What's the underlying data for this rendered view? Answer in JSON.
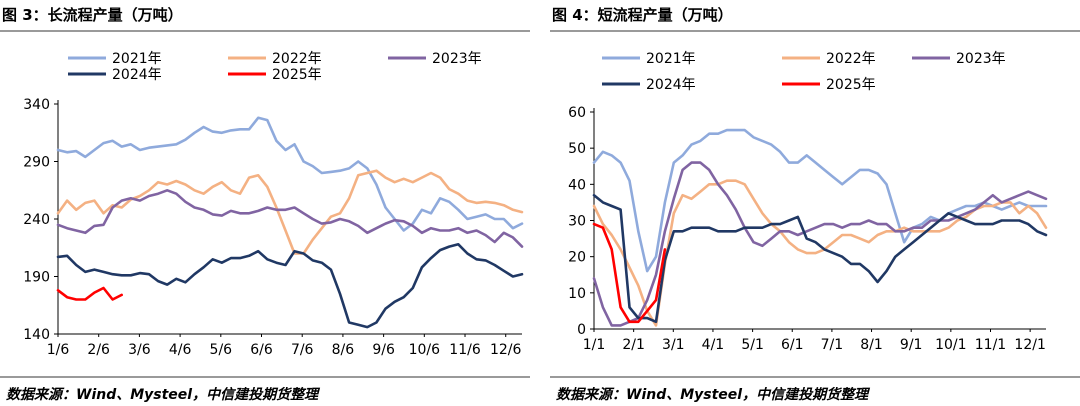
{
  "left_panel": {
    "title": "图 3：长流程产量（万吨）",
    "source": "数据来源：Wind、Mysteel，中信建投期货整理"
  },
  "right_panel": {
    "title": "图 4：短流程产量（万吨）",
    "source": "数据来源：Wind、Mysteel，中信建投期货整理"
  },
  "chart_data": [
    {
      "type": "line",
      "title": "长流程产量（万吨）",
      "xlabel": "",
      "ylabel": "",
      "x_tick_labels": [
        "1/6",
        "2/6",
        "3/6",
        "4/6",
        "5/6",
        "6/6",
        "7/6",
        "8/6",
        "9/6",
        "10/6",
        "11/6",
        "12/6"
      ],
      "y_ticks": [
        140,
        190,
        240,
        290,
        340
      ],
      "ylim": [
        140,
        340
      ],
      "week_count": 52,
      "grid": false,
      "legend_position": "top",
      "series": [
        {
          "name": "2021年",
          "color": "#8faadc",
          "values": [
            300,
            298,
            299,
            294,
            300,
            306,
            308,
            303,
            305,
            300,
            302,
            303,
            304,
            305,
            309,
            315,
            320,
            316,
            315,
            317,
            318,
            318,
            328,
            326,
            308,
            300,
            305,
            290,
            286,
            280,
            281,
            282,
            284,
            290,
            284,
            270,
            250,
            240,
            230,
            236,
            248,
            245,
            258,
            255,
            248,
            240,
            242,
            244,
            240,
            240,
            232,
            236
          ]
        },
        {
          "name": "2022年",
          "color": "#f4b183",
          "values": [
            245,
            256,
            248,
            254,
            256,
            245,
            252,
            250,
            257,
            260,
            265,
            272,
            270,
            273,
            270,
            265,
            262,
            268,
            272,
            265,
            262,
            276,
            278,
            268,
            250,
            230,
            210,
            210,
            222,
            232,
            242,
            245,
            258,
            278,
            280,
            282,
            276,
            272,
            275,
            272,
            276,
            280,
            276,
            266,
            262,
            256,
            254,
            255,
            254,
            252,
            248,
            246
          ]
        },
        {
          "name": "2023年",
          "color": "#8064a2",
          "values": [
            235,
            232,
            230,
            228,
            234,
            235,
            250,
            256,
            258,
            256,
            260,
            262,
            265,
            262,
            255,
            250,
            248,
            244,
            243,
            247,
            245,
            245,
            247,
            250,
            248,
            248,
            250,
            245,
            240,
            236,
            237,
            240,
            238,
            234,
            228,
            232,
            236,
            239,
            238,
            234,
            228,
            232,
            230,
            230,
            232,
            228,
            230,
            226,
            220,
            228,
            224,
            216
          ]
        },
        {
          "name": "2024年",
          "color": "#203864",
          "values": [
            207,
            208,
            200,
            194,
            196,
            194,
            192,
            191,
            191,
            193,
            192,
            186,
            183,
            188,
            185,
            192,
            198,
            205,
            202,
            206,
            206,
            208,
            212,
            205,
            202,
            200,
            212,
            210,
            204,
            202,
            196,
            175,
            150,
            148,
            146,
            150,
            162,
            168,
            172,
            180,
            198,
            206,
            213,
            216,
            218,
            210,
            205,
            204,
            200,
            195,
            190,
            192
          ]
        },
        {
          "name": "2025年",
          "color": "#ff0000",
          "values": [
            178,
            172,
            170,
            170,
            176,
            180,
            170,
            174
          ]
        }
      ]
    },
    {
      "type": "line",
      "title": "短流程产量（万吨）",
      "xlabel": "",
      "ylabel": "",
      "x_tick_labels": [
        "1/1",
        "2/1",
        "3/1",
        "4/1",
        "5/1",
        "6/1",
        "7/1",
        "8/1",
        "9/1",
        "10/1",
        "11/1",
        "12/1"
      ],
      "y_ticks": [
        0,
        10,
        20,
        30,
        40,
        50,
        60
      ],
      "ylim": [
        0,
        60
      ],
      "week_count": 52,
      "grid": false,
      "legend_position": "top",
      "series": [
        {
          "name": "2021年",
          "color": "#8faadc",
          "values": [
            46,
            49,
            48,
            46,
            41,
            27,
            16,
            20,
            35,
            46,
            48,
            51,
            52,
            54,
            54,
            55,
            55,
            55,
            53,
            52,
            51,
            49,
            46,
            46,
            48,
            46,
            44,
            42,
            40,
            42,
            44,
            44,
            43,
            40,
            32,
            24,
            28,
            29,
            31,
            30,
            32,
            33,
            34,
            34,
            35,
            34,
            33,
            34,
            35,
            34,
            34,
            34
          ]
        },
        {
          "name": "2022年",
          "color": "#f4b183",
          "values": [
            34,
            29,
            26,
            22,
            17,
            12,
            5,
            1,
            18,
            32,
            37,
            36,
            38,
            40,
            40,
            41,
            41,
            40,
            36,
            32,
            29,
            27,
            24,
            22,
            21,
            21,
            22,
            24,
            26,
            26,
            25,
            24,
            26,
            27,
            27,
            28,
            27,
            27,
            27,
            27,
            28,
            30,
            31,
            33,
            34,
            34,
            35,
            35,
            32,
            34,
            32,
            28
          ]
        },
        {
          "name": "2023年",
          "color": "#8064a2",
          "values": [
            14,
            6,
            1,
            1,
            2,
            3,
            8,
            15,
            27,
            36,
            44,
            46,
            46,
            44,
            40,
            37,
            33,
            28,
            24,
            23,
            25,
            27,
            27,
            26,
            27,
            28,
            29,
            29,
            28,
            29,
            29,
            30,
            29,
            29,
            27,
            27,
            28,
            28,
            30,
            30,
            30,
            31,
            32,
            33,
            35,
            37,
            35,
            36,
            37,
            38,
            37,
            36
          ]
        },
        {
          "name": "2024年",
          "color": "#203864",
          "values": [
            37,
            35,
            34,
            33,
            6,
            3,
            3,
            2,
            19,
            27,
            27,
            28,
            28,
            28,
            27,
            27,
            27,
            28,
            28,
            28,
            29,
            29,
            30,
            31,
            25,
            24,
            22,
            21,
            20,
            18,
            18,
            16,
            13,
            16,
            20,
            22,
            24,
            26,
            28,
            30,
            32,
            31,
            30,
            29,
            29,
            29,
            30,
            30,
            30,
            29,
            27,
            26
          ]
        },
        {
          "name": "2025年",
          "color": "#ff0000",
          "values": [
            29,
            28,
            22,
            6,
            2,
            2,
            5,
            8,
            22
          ]
        }
      ]
    }
  ]
}
